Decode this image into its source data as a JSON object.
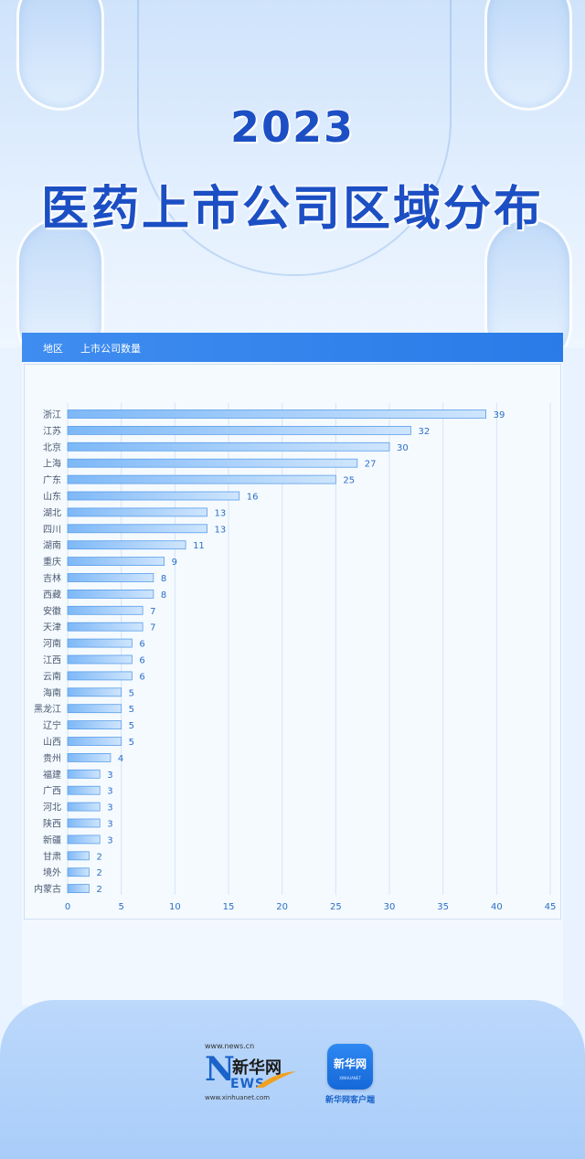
{
  "title": {
    "year": "2023",
    "main": "医药上市公司区域分布"
  },
  "header": {
    "col1": "地区",
    "col2": "上市公司数量"
  },
  "chart_data": {
    "type": "bar",
    "orientation": "horizontal",
    "categories": [
      "浙江",
      "江苏",
      "北京",
      "上海",
      "广东",
      "山东",
      "湖北",
      "四川",
      "湖南",
      "重庆",
      "吉林",
      "西藏",
      "安徽",
      "天津",
      "河南",
      "江西",
      "云南",
      "海南",
      "黑龙江",
      "辽宁",
      "山西",
      "贵州",
      "福建",
      "广西",
      "河北",
      "陕西",
      "新疆",
      "甘肃",
      "境外",
      "内蒙古"
    ],
    "values": [
      39,
      32,
      30,
      27,
      25,
      16,
      13,
      13,
      11,
      9,
      8,
      8,
      7,
      7,
      6,
      6,
      6,
      5,
      5,
      5,
      5,
      4,
      3,
      3,
      3,
      3,
      3,
      2,
      2,
      2
    ],
    "xticks": [
      0,
      5,
      10,
      15,
      20,
      25,
      30,
      35,
      40,
      45
    ],
    "xlim": [
      0,
      45
    ],
    "grid": "vertical",
    "data_labels": true,
    "bar_color": "#6fb0f5",
    "label_color": "#2a6fc7"
  },
  "footer": {
    "site_url": "www.news.cn",
    "logo_n": "N",
    "logo_cn": "新华网",
    "logo_ews": "EWS",
    "xinhua_url": "www.xinhuanet.com",
    "app_icon_text": "新华网",
    "app_icon_sub": "XINHUANET",
    "app_label": "新华网客户端"
  }
}
